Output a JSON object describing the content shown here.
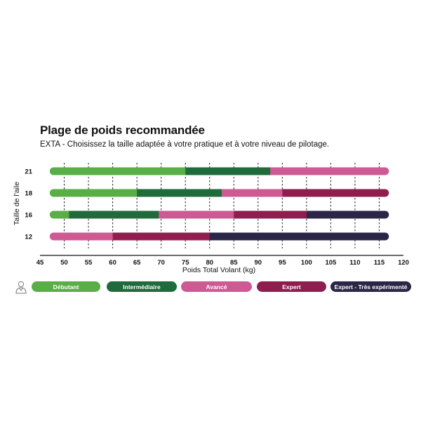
{
  "header": {
    "title": "Plage de poids recommandée",
    "subtitle": "EXTA - Choisissez la taille adaptée à votre pratique et à votre niveau de pilotage."
  },
  "chart_data": {
    "type": "bar",
    "orientation": "horizontal-stacked",
    "xlabel": "Poids Total Volant (kg)",
    "ylabel": "Taille de l'aile",
    "xlim": [
      45,
      120
    ],
    "xticks": [
      45,
      50,
      55,
      60,
      65,
      70,
      75,
      80,
      85,
      90,
      95,
      100,
      105,
      110,
      115,
      120
    ],
    "grid": "vertical-dashed",
    "legend_position": "bottom",
    "levels": [
      {
        "name": "Débutant",
        "color": "#5aae47"
      },
      {
        "name": "Intermédiaire",
        "color": "#1f6b3b"
      },
      {
        "name": "Avancé",
        "color": "#cd5a93"
      },
      {
        "name": "Expert",
        "color": "#8f1e4f"
      },
      {
        "name": "Expert - Très expérimenté",
        "color": "#2b2547"
      }
    ],
    "rows": [
      {
        "size": "21",
        "segments": [
          {
            "level": "Débutant",
            "from": 47,
            "to": 75
          },
          {
            "level": "Intermédiaire",
            "to": 92.5,
            "from": 75
          },
          {
            "level": "Avancé",
            "from": 92.5,
            "to": 117
          }
        ]
      },
      {
        "size": "18",
        "segments": [
          {
            "level": "Débutant",
            "from": 47,
            "to": 65
          },
          {
            "level": "Intermédiaire",
            "from": 65,
            "to": 82.5
          },
          {
            "level": "Avancé",
            "from": 82.5,
            "to": 95
          },
          {
            "level": "Expert",
            "from": 95,
            "to": 117
          }
        ]
      },
      {
        "size": "16",
        "segments": [
          {
            "level": "Débutant",
            "from": 47,
            "to": 51
          },
          {
            "level": "Intermédiaire",
            "from": 51,
            "to": 69.5
          },
          {
            "level": "Avancé",
            "from": 69.5,
            "to": 85
          },
          {
            "level": "Expert",
            "from": 85,
            "to": 100
          },
          {
            "level": "Expert - Très expérimenté",
            "from": 100,
            "to": 117
          }
        ]
      },
      {
        "size": "12",
        "segments": [
          {
            "level": "Avancé",
            "from": 47,
            "to": 60
          },
          {
            "level": "Expert",
            "from": 60,
            "to": 80
          },
          {
            "level": "Expert - Très expérimenté",
            "from": 80,
            "to": 117
          }
        ]
      }
    ]
  },
  "legend": {
    "person_icon": "pilot-person-icon",
    "items": [
      {
        "label": "Débutant",
        "color": "#5aae47"
      },
      {
        "label": "Intermédiaire",
        "color": "#1f6b3b"
      },
      {
        "label": "Avancé",
        "color": "#cd5a93"
      },
      {
        "label": "Expert",
        "color": "#8f1e4f"
      },
      {
        "label": "Expert - Très expérimenté",
        "color": "#2b2547"
      }
    ]
  }
}
